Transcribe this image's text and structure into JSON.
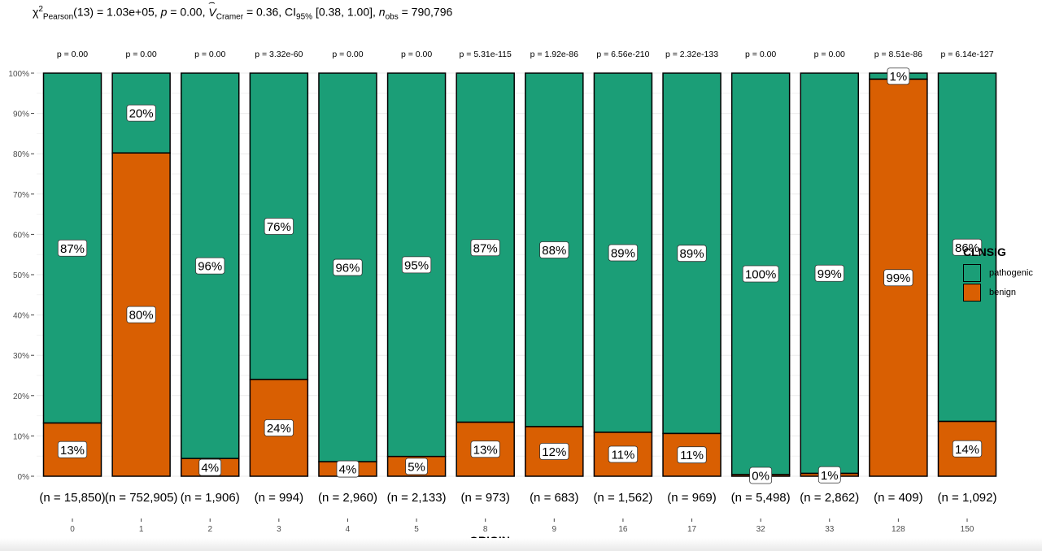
{
  "subtitle": {
    "chi": "χ",
    "chi_sup": "2",
    "chi_sub": "Pearson",
    "df_stat": "(13) = 1.03e+05, ",
    "p_sym": "p",
    "p_val": " = 0.00, ",
    "v_sym": "V",
    "v_sub": "Cramer",
    "v_val": " = 0.36, CI",
    "ci_sub": "95%",
    "ci_val": " [0.38, 1.00], ",
    "n_sym": "n",
    "n_sub": "obs",
    "n_val": " = 790,796"
  },
  "legend": {
    "title": "CLNSIG",
    "items": [
      {
        "label": "pathogenic",
        "color": "#1b9e77"
      },
      {
        "label": "benign",
        "color": "#d95f02"
      }
    ]
  },
  "chart_data": {
    "type": "bar",
    "stacked": true,
    "xlabel": "ORIGIN",
    "ylabel": "",
    "ylim": [
      0,
      100
    ],
    "y_ticks": [
      "0%",
      "10%",
      "20%",
      "30%",
      "40%",
      "50%",
      "60%",
      "70%",
      "80%",
      "90%",
      "100%"
    ],
    "categories": [
      "0",
      "1",
      "2",
      "3",
      "4",
      "5",
      "8",
      "9",
      "16",
      "17",
      "32",
      "33",
      "128",
      "150"
    ],
    "series": [
      {
        "name": "benign",
        "color": "#d95f02",
        "values": [
          13.2,
          80.2,
          4.4,
          24.0,
          3.6,
          4.9,
          13.4,
          12.3,
          10.9,
          10.6,
          0.4,
          0.7,
          98.5,
          13.6
        ],
        "labels": [
          "13%",
          "80%",
          "4%",
          "24%",
          "4%",
          "5%",
          "13%",
          "12%",
          "11%",
          "11%",
          "0%",
          "1%",
          "99%",
          "14%"
        ]
      },
      {
        "name": "pathogenic",
        "color": "#1b9e77",
        "values": [
          86.8,
          19.8,
          95.6,
          76.0,
          96.4,
          95.1,
          86.6,
          87.7,
          89.1,
          89.4,
          99.6,
          99.3,
          1.5,
          86.4
        ],
        "labels": [
          "87%",
          "20%",
          "96%",
          "76%",
          "96%",
          "95%",
          "87%",
          "88%",
          "89%",
          "89%",
          "100%",
          "99%",
          "1%",
          "86%"
        ]
      }
    ],
    "p_values": [
      "p = 0.00",
      "p = 0.00",
      "p = 0.00",
      "p = 3.32e-60",
      "p = 0.00",
      "p = 0.00",
      "p = 5.31e-115",
      "p = 1.92e-86",
      "p = 6.56e-210",
      "p = 2.32e-133",
      "p = 0.00",
      "p = 0.00",
      "p = 8.51e-86",
      "p = 6.14e-127"
    ],
    "counts": [
      "(n = 15,850)",
      "(n = 752,905)",
      "(n = 1,906)",
      "(n = 994)",
      "(n = 2,960)",
      "(n = 2,133)",
      "(n = 973)",
      "(n = 683)",
      "(n = 1,562)",
      "(n = 969)",
      "(n = 5,498)",
      "(n = 2,862)",
      "(n = 409)",
      "(n = 1,092)"
    ],
    "grid": true,
    "legend_position": "right"
  }
}
